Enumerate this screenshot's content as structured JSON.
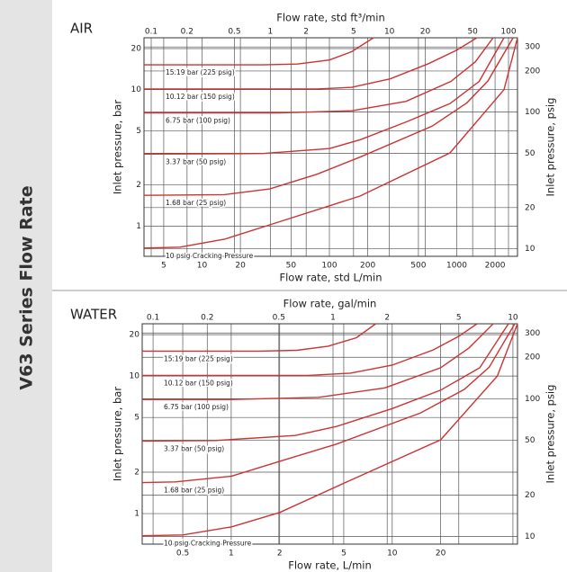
{
  "sidebar_title": "V63 Series Flow Rate",
  "chart_data": [
    {
      "type": "line",
      "title": "AIR",
      "x_label": "Flow rate, std L/min",
      "x2_label": "Flow rate, std ft³/min",
      "y_label": "Inlet pressure, bar",
      "y2_label": "Inlet pressure, psig",
      "xscale": "log",
      "yscale": "log",
      "grid": true,
      "xlim": [
        3.5,
        3000
      ],
      "xticks": [
        5,
        10,
        20,
        50,
        100,
        200,
        500,
        1000,
        2000
      ],
      "x2lim": [
        0.087,
        119
      ],
      "x2ticks": [
        0.1,
        0.2,
        0.5,
        1,
        2,
        5,
        10,
        20,
        50,
        100
      ],
      "ylim": [
        0.6,
        24
      ],
      "yticks": [
        1,
        2,
        5,
        10,
        20
      ],
      "y2lim": [
        8.8,
        350
      ],
      "y2ticks": [
        10,
        20,
        50,
        100,
        200,
        300
      ],
      "series": [
        {
          "name": "15.19 bar (225 psig)",
          "color": "#cc3333",
          "x": [
            3.5,
            30,
            56,
            100,
            150,
            222
          ],
          "values": [
            15.19,
            15.19,
            15.4,
            16.5,
            19,
            24
          ]
        },
        {
          "name": "10.12 bar (150 psig)",
          "color": "#cc3333",
          "x": [
            3.5,
            80,
            150,
            300,
            600,
            1000,
            1440
          ],
          "values": [
            10.12,
            10.12,
            10.4,
            12,
            15.5,
            19.5,
            24
          ]
        },
        {
          "name": "6.75 bar (100 psig)",
          "color": "#cc3333",
          "x": [
            3.5,
            40,
            150,
            400,
            900,
            1400,
            1930
          ],
          "values": [
            6.75,
            6.75,
            7.0,
            8.2,
            11.5,
            16,
            24
          ]
        },
        {
          "name": "3.37 bar (50 psig)",
          "color": "#cc3333",
          "x": [
            3.5,
            30,
            100,
            175,
            400,
            885,
            1500,
            2350
          ],
          "values": [
            3.37,
            3.4,
            3.7,
            4.3,
            5.8,
            7.9,
            11.5,
            24
          ]
        },
        {
          "name": "1.68 bar (25 psig)",
          "color": "#cc3333",
          "x": [
            3.5,
            15,
            34,
            80,
            174,
            640,
            1200,
            1760,
            2770
          ],
          "values": [
            1.68,
            1.7,
            1.87,
            2.4,
            3.2,
            5.4,
            8,
            11.6,
            24
          ]
        },
        {
          "name": "10 psig Cracking Pressure",
          "color": "#cc3333",
          "x": [
            3.5,
            6.7,
            15,
            34,
            174,
            885,
            2350,
            3000
          ],
          "values": [
            0.69,
            0.7,
            0.8,
            1.02,
            1.66,
            3.44,
            10,
            24
          ]
        }
      ]
    },
    {
      "type": "line",
      "title": "WATER",
      "x_label": "Flow rate, L/min",
      "x2_label": "Flow rate, gal/min",
      "y_label": "Inlet pressure, bar",
      "y2_label": "Inlet pressure, psig",
      "xscale": "log",
      "yscale": "log",
      "grid": true,
      "xlim": [
        0.28,
        60
      ],
      "xticks": [
        0.5,
        1,
        2,
        5,
        10,
        20
      ],
      "x2lim": [
        0.087,
        10.6
      ],
      "x2ticks": [
        0.1,
        0.2,
        0.5,
        1,
        2,
        5,
        10
      ],
      "ylim": [
        0.6,
        24
      ],
      "yticks": [
        1,
        2,
        5,
        10,
        20
      ],
      "y2lim": [
        8.8,
        350
      ],
      "y2ticks": [
        10,
        20,
        50,
        100,
        200,
        300
      ],
      "series": [
        {
          "name": "15.19 bar (225 psig)",
          "color": "#cc3333",
          "x": [
            0.28,
            1.5,
            2.56,
            4,
            6,
            7.9
          ],
          "values": [
            15.19,
            15.19,
            15.4,
            16.5,
            19,
            24
          ]
        },
        {
          "name": "10.12 bar (150 psig)",
          "color": "#cc3333",
          "x": [
            0.28,
            3,
            5.5,
            10,
            18,
            26,
            33.6
          ],
          "values": [
            10.12,
            10.12,
            10.5,
            12,
            15.5,
            19.5,
            24
          ]
        },
        {
          "name": "6.75 bar (100 psig)",
          "color": "#cc3333",
          "x": [
            0.28,
            1,
            3.5,
            9,
            20,
            30,
            42.4
          ],
          "values": [
            6.75,
            6.75,
            7.0,
            8.2,
            11.5,
            16,
            24
          ]
        },
        {
          "name": "3.37 bar (50 psig)",
          "color": "#cc3333",
          "x": [
            0.28,
            0.8,
            2.5,
            4.5,
            10,
            20,
            35,
            52.7
          ],
          "values": [
            3.37,
            3.4,
            3.7,
            4.3,
            5.8,
            7.9,
            11.5,
            24
          ]
        },
        {
          "name": "1.68 bar (25 psig)",
          "color": "#cc3333",
          "x": [
            0.28,
            0.45,
            1,
            2,
            4.5,
            15,
            28,
            40,
            57.7
          ],
          "values": [
            1.68,
            1.7,
            1.87,
            2.4,
            3.2,
            5.4,
            8,
            11.6,
            24
          ]
        },
        {
          "name": "10 psig Cracking Pressure",
          "color": "#cc3333",
          "x": [
            0.28,
            0.5,
            1,
            2,
            5,
            20,
            45,
            60
          ],
          "values": [
            0.69,
            0.7,
            0.8,
            1.02,
            1.66,
            3.44,
            10,
            24
          ]
        }
      ]
    }
  ]
}
